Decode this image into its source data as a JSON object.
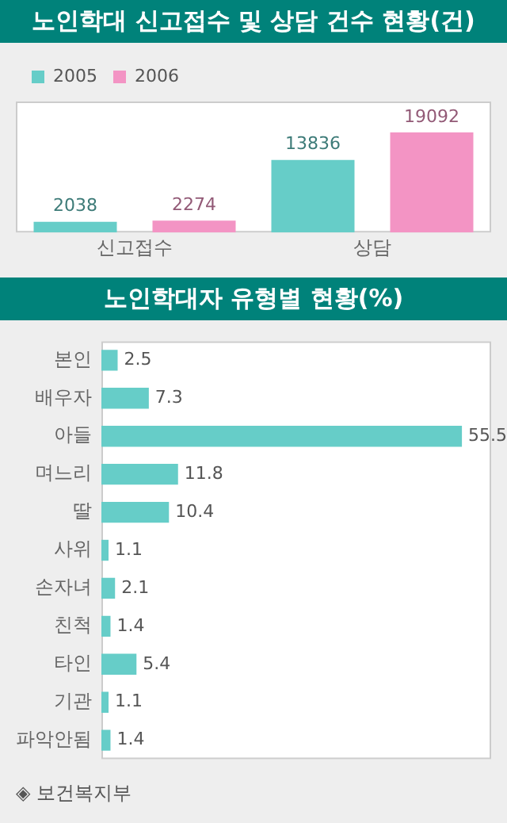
{
  "chart_data": [
    {
      "type": "bar",
      "title": "노인학대 신고접수 및 상담 건수 현황(건)",
      "categories": [
        "신고접수",
        "상담"
      ],
      "series": [
        {
          "name": "2005",
          "color": "#66cdc8",
          "values": [
            2038,
            13836
          ]
        },
        {
          "name": "2006",
          "color": "#f394c4",
          "values": [
            2274,
            19092
          ]
        }
      ],
      "data_labels": true,
      "legend": "top left",
      "grid": false
    },
    {
      "type": "bar",
      "orientation": "horizontal",
      "title": "노인학대자 유형별 현황(%)",
      "categories": [
        "본인",
        "배우자",
        "아들",
        "며느리",
        "딸",
        "사위",
        "손자녀",
        "친척",
        "타인",
        "기관",
        "파악안됨"
      ],
      "values": [
        2.5,
        7.3,
        55.5,
        11.8,
        10.4,
        1.1,
        2.1,
        1.4,
        5.4,
        1.1,
        1.4
      ],
      "color": "#66cdc8",
      "data_labels": true,
      "grid": false,
      "annotations": [
        "◈ 보건복지부"
      ]
    }
  ]
}
